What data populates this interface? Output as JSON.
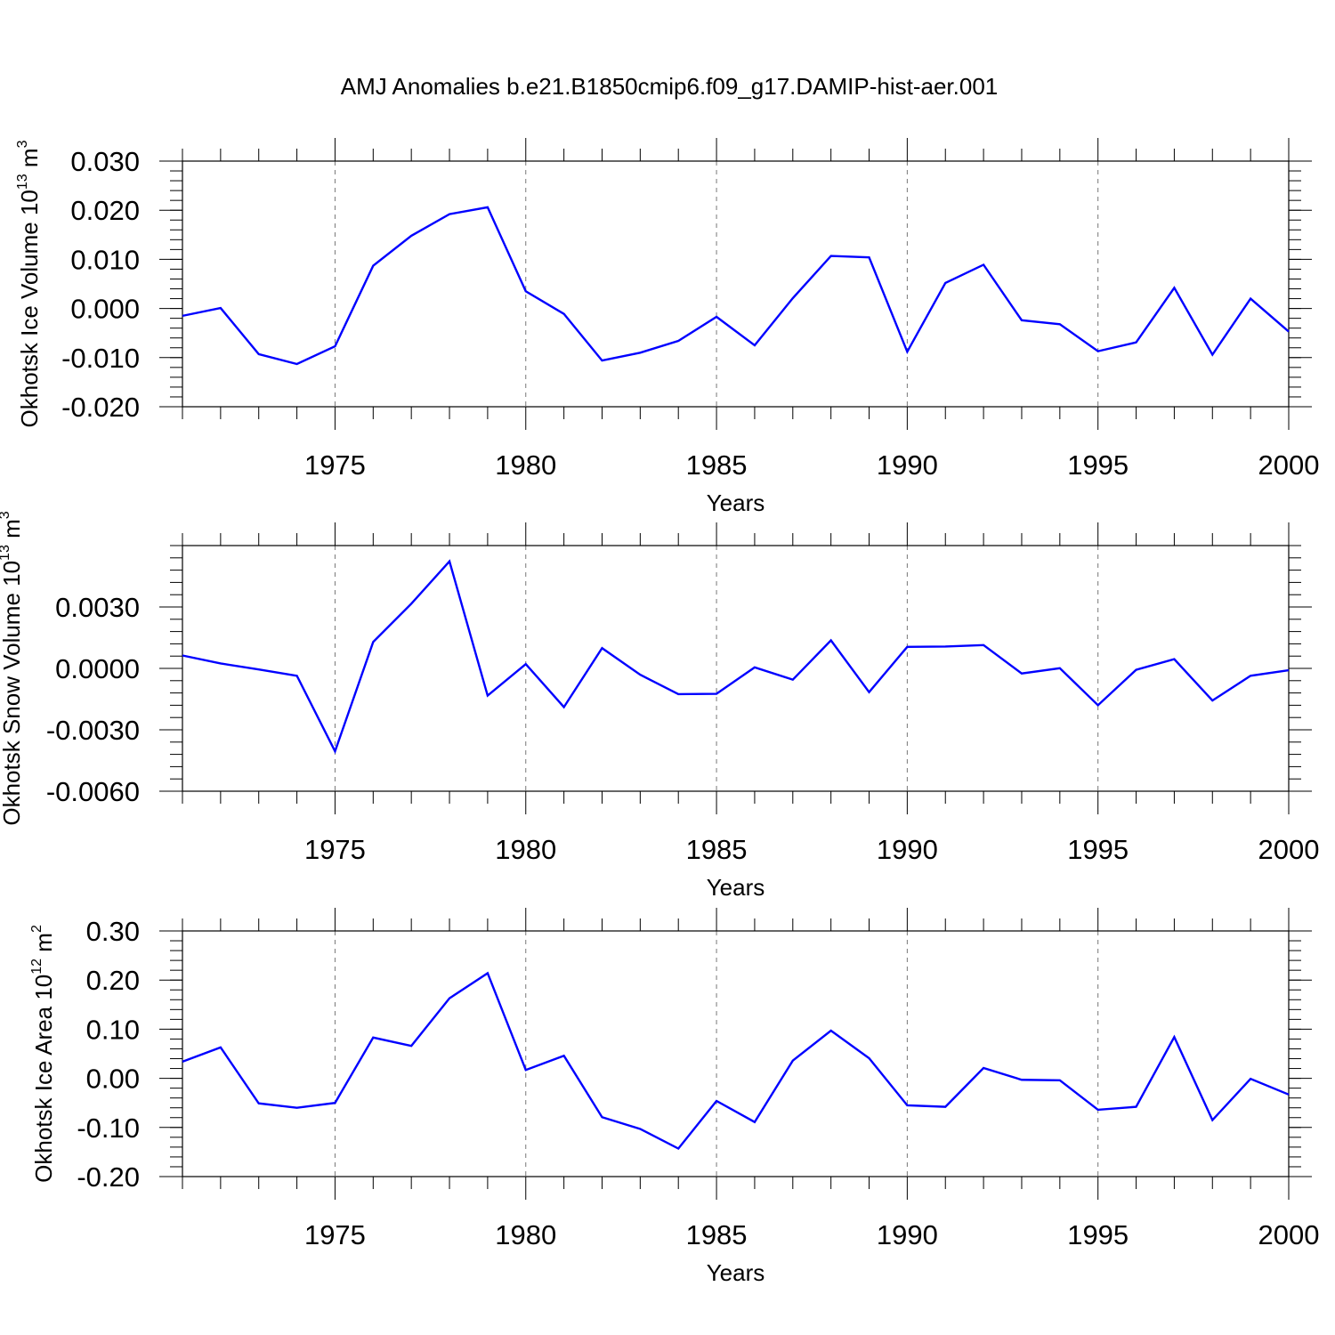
{
  "title": "AMJ Anomalies b.e21.B1850cmip6.f09_g17.DAMIP-hist-aer.001",
  "colors": {
    "line": "#0000ff",
    "axis": "#000000",
    "grid": "#777777"
  },
  "chart_data": [
    {
      "type": "line",
      "xlabel": "Years",
      "ylabel": {
        "main": "Okhotsk Ice Volume 10",
        "exp": "13",
        "unit": " m",
        "unit_exp": "3"
      },
      "xlim": [
        1971,
        2000
      ],
      "ylim": [
        -0.02,
        0.03
      ],
      "x_ticks": [
        1975,
        1980,
        1985,
        1990,
        1995,
        2000
      ],
      "x_tick_labels": [
        "1975",
        "1980",
        "1985",
        "1990",
        "1995",
        "2000"
      ],
      "y_ticks": [
        -0.02,
        -0.01,
        0.0,
        0.01,
        0.02,
        0.03
      ],
      "y_tick_labels": [
        "-0.020",
        "-0.010",
        "0.000",
        "0.010",
        "0.020",
        "0.030"
      ],
      "y_minor_step": 0.002,
      "grid": "vertical dashed at major x ticks",
      "x": [
        1971,
        1972,
        1973,
        1974,
        1975,
        1976,
        1977,
        1978,
        1979,
        1980,
        1981,
        1982,
        1983,
        1984,
        1985,
        1986,
        1987,
        1988,
        1989,
        1990,
        1991,
        1992,
        1993,
        1994,
        1995,
        1996,
        1997,
        1998,
        1999,
        2000
      ],
      "values": [
        -0.0015,
        0.0001,
        -0.0093,
        -0.0113,
        -0.0077,
        0.0087,
        0.0148,
        0.0192,
        0.0206,
        0.0035,
        -0.0011,
        -0.0106,
        -0.009,
        -0.0066,
        -0.0017,
        -0.0075,
        0.0021,
        0.0107,
        0.0104,
        -0.0088,
        0.0052,
        0.0089,
        -0.0024,
        -0.0032,
        -0.0087,
        -0.0069,
        0.0042,
        -0.0094,
        0.002,
        -0.0047
      ]
    },
    {
      "type": "line",
      "xlabel": "Years",
      "ylabel": {
        "main": "Okhotsk Snow Volume 10",
        "exp": "13",
        "unit": " m",
        "unit_exp": "3"
      },
      "xlim": [
        1971,
        2000
      ],
      "ylim": [
        -0.006,
        0.006
      ],
      "x_ticks": [
        1975,
        1980,
        1985,
        1990,
        1995,
        2000
      ],
      "x_tick_labels": [
        "1975",
        "1980",
        "1985",
        "1990",
        "1995",
        "2000"
      ],
      "y_ticks": [
        -0.006,
        -0.003,
        0.0,
        0.003
      ],
      "y_tick_labels": [
        "-0.0060",
        "-0.0030",
        "0.0000",
        "0.0030"
      ],
      "y_minor_step": 0.0006,
      "grid": "vertical dashed at major x ticks",
      "x": [
        1971,
        1972,
        1973,
        1974,
        1975,
        1976,
        1977,
        1978,
        1979,
        1980,
        1981,
        1982,
        1983,
        1984,
        1985,
        1986,
        1987,
        1988,
        1989,
        1990,
        1991,
        1992,
        1993,
        1994,
        1995,
        1996,
        1997,
        1998,
        1999,
        2000
      ],
      "values": [
        0.00063,
        0.00024,
        -5e-05,
        -0.00036,
        -0.00405,
        0.00129,
        0.00316,
        0.00523,
        -0.00133,
        0.00021,
        -0.00189,
        0.00099,
        -0.00031,
        -0.00126,
        -0.00124,
        5e-05,
        -0.00055,
        0.00137,
        -0.00116,
        0.00105,
        0.00107,
        0.00114,
        -0.00025,
        1e-05,
        -0.0018,
        -7e-05,
        0.00045,
        -0.00157,
        -0.00036,
        -9e-05
      ]
    },
    {
      "type": "line",
      "xlabel": "Years",
      "ylabel": {
        "main": "Okhotsk Ice Area 10",
        "exp": "12",
        "unit": " m",
        "unit_exp": "2"
      },
      "xlim": [
        1971,
        2000
      ],
      "ylim": [
        -0.2,
        0.3
      ],
      "x_ticks": [
        1975,
        1980,
        1985,
        1990,
        1995,
        2000
      ],
      "x_tick_labels": [
        "1975",
        "1980",
        "1985",
        "1990",
        "1995",
        "2000"
      ],
      "y_ticks": [
        -0.2,
        -0.1,
        0.0,
        0.1,
        0.2,
        0.3
      ],
      "y_tick_labels": [
        "-0.20",
        "-0.10",
        "0.00",
        "0.10",
        "0.20",
        "0.30"
      ],
      "y_minor_step": 0.02,
      "grid": "vertical dashed at major x ticks",
      "x": [
        1971,
        1972,
        1973,
        1974,
        1975,
        1976,
        1977,
        1978,
        1979,
        1980,
        1981,
        1982,
        1983,
        1984,
        1985,
        1986,
        1987,
        1988,
        1989,
        1990,
        1991,
        1992,
        1993,
        1994,
        1995,
        1996,
        1997,
        1998,
        1999,
        2000
      ],
      "values": [
        0.034,
        0.063,
        -0.051,
        -0.06,
        -0.05,
        0.083,
        0.066,
        0.163,
        0.214,
        0.017,
        0.046,
        -0.079,
        -0.103,
        -0.143,
        -0.046,
        -0.089,
        0.036,
        0.097,
        0.041,
        -0.055,
        -0.058,
        0.021,
        -0.003,
        -0.004,
        -0.064,
        -0.058,
        0.084,
        -0.085,
        -0.001,
        -0.033
      ]
    }
  ]
}
